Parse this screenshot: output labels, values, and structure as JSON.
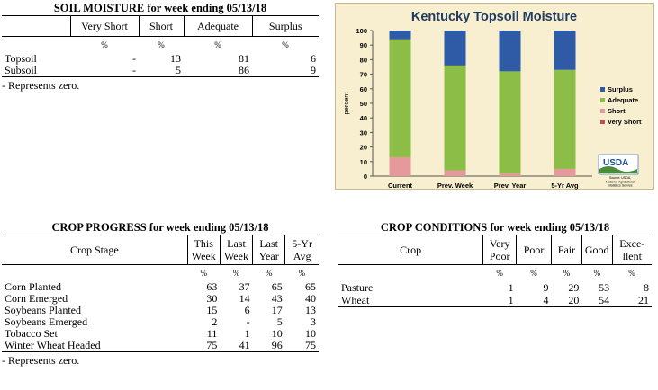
{
  "soil_moisture": {
    "title": "SOIL MOISTURE for week ending 05/13/18",
    "headers": [
      "",
      "Very Short",
      "Short",
      "Adequate",
      "Surplus"
    ],
    "units": [
      "",
      "%",
      "%",
      "%",
      "%"
    ],
    "rows": [
      {
        "label": "Topsoil",
        "values": [
          "-",
          "13",
          "81",
          "6"
        ]
      },
      {
        "label": "Subsoil",
        "values": [
          "-",
          "5",
          "86",
          "9"
        ]
      }
    ],
    "note": "- Represents zero."
  },
  "crop_progress": {
    "title": "CROP PROGRESS for week ending 05/13/18",
    "headers": [
      {
        "line1": "Crop Stage",
        "line2": ""
      },
      {
        "line1": "This",
        "line2": "Week"
      },
      {
        "line1": "Last",
        "line2": "Week"
      },
      {
        "line1": "Last",
        "line2": "Year"
      },
      {
        "line1": "5-Yr",
        "line2": "Avg"
      }
    ],
    "units": [
      "",
      "%",
      "%",
      "%",
      "%"
    ],
    "rows": [
      {
        "label": "Corn Planted",
        "values": [
          "63",
          "37",
          "65",
          "65"
        ]
      },
      {
        "label": "Corn Emerged",
        "values": [
          "30",
          "14",
          "43",
          "40"
        ]
      },
      {
        "label": "Soybeans Planted",
        "values": [
          "15",
          "6",
          "17",
          "13"
        ]
      },
      {
        "label": "Soybeans Emerged",
        "values": [
          "2",
          "-",
          "5",
          "3"
        ]
      },
      {
        "label": "Tobacco Set",
        "values": [
          "11",
          "1",
          "10",
          "10"
        ]
      },
      {
        "label": "Winter Wheat Headed",
        "values": [
          "75",
          "41",
          "96",
          "75"
        ]
      }
    ],
    "note": "- Represents zero."
  },
  "crop_conditions": {
    "title": "CROP CONDITIONS for week ending 05/13/18",
    "headers": [
      {
        "line1": "Crop",
        "line2": ""
      },
      {
        "line1": "Very",
        "line2": "Poor"
      },
      {
        "line1": "Poor",
        "line2": ""
      },
      {
        "line1": "Fair",
        "line2": ""
      },
      {
        "line1": "Good",
        "line2": ""
      },
      {
        "line1": "Exce-",
        "line2": "llent"
      }
    ],
    "units": [
      "",
      "%",
      "%",
      "%",
      "%",
      "%"
    ],
    "rows": [
      {
        "label": "Pasture",
        "values": [
          "1",
          "9",
          "29",
          "53",
          "8"
        ]
      },
      {
        "label": "Wheat",
        "values": [
          "1",
          "4",
          "20",
          "54",
          "21"
        ]
      }
    ]
  },
  "chart_data": {
    "type": "bar",
    "stacked": true,
    "title": "Kentucky Topsoil Moisture",
    "ylabel": "percent",
    "xlabel": "",
    "ylim": [
      0,
      100
    ],
    "yticks": [
      0,
      10,
      20,
      30,
      40,
      50,
      60,
      70,
      80,
      90,
      100
    ],
    "categories": [
      "Current",
      "Prev. Week",
      "Prev. Year",
      "5-Yr Avg"
    ],
    "series": [
      {
        "name": "Very Short",
        "color": "#c0504d",
        "values": [
          0,
          0,
          0,
          0
        ]
      },
      {
        "name": "Short",
        "color": "#e6999a",
        "values": [
          13,
          4,
          2,
          5
        ]
      },
      {
        "name": "Adequate",
        "color": "#8cbd46",
        "values": [
          81,
          72,
          70,
          68
        ]
      },
      {
        "name": "Surplus",
        "color": "#2e5aa6",
        "values": [
          6,
          24,
          28,
          27
        ]
      }
    ],
    "legend_order": [
      "Surplus",
      "Adequate",
      "Short",
      "Very Short"
    ],
    "legend_position": "right",
    "grid": false,
    "logo": {
      "text": "USDA",
      "source_lines": [
        "Source: USDA,",
        "National Agricultural",
        "Statistics Service"
      ]
    }
  }
}
